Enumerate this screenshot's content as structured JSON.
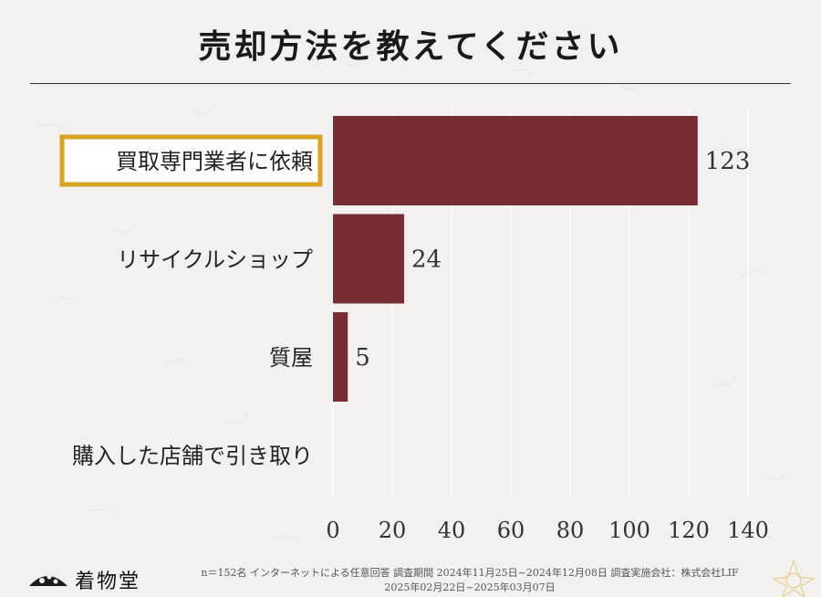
{
  "page": {
    "title": "売却方法を教えてください",
    "footer_line1": "n＝152名 インターネットによる任意回答 調査期間 2024年11月25日~2024年12月08日 調査実施会社：株式会社LIF",
    "footer_line2": "2025年02月22日~2025年03月07日",
    "logo_text": "着物堂"
  },
  "colors": {
    "bar": "#772d33",
    "highlight_border": "#d9a521",
    "grid": "#ffffff",
    "background": "#f2f1ef"
  },
  "chart_data": {
    "type": "bar",
    "orientation": "horizontal",
    "categories": [
      "買取専門業者に依頼",
      "リサイクルショップ",
      "質屋",
      "購入した店舗で引き取り"
    ],
    "values": [
      123,
      24,
      5,
      0
    ],
    "value_labels": [
      "123",
      "24",
      "5",
      ""
    ],
    "highlighted_category": "買取専門業者に依頼",
    "xlim": [
      0,
      140
    ],
    "xticks": [
      0,
      20,
      40,
      60,
      80,
      100,
      120,
      140
    ],
    "grid": true
  }
}
